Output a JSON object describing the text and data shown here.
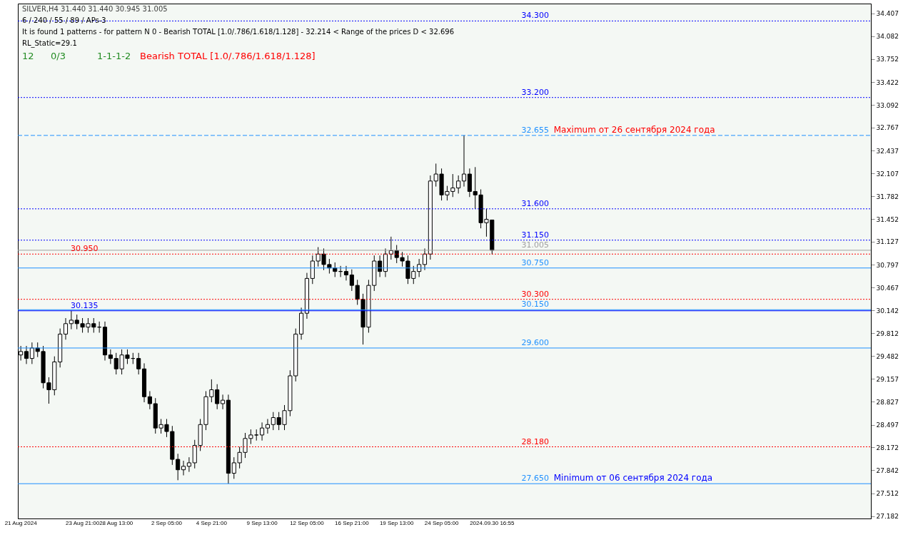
{
  "chart_data": {
    "type": "candlestick",
    "categories": [
      "21 Aug 2024",
      null,
      null,
      null,
      null,
      null,
      null,
      null,
      null,
      null,
      null,
      "23 Aug 21:00",
      null,
      null,
      null,
      null,
      null,
      "28 Aug 13:00",
      null,
      null,
      null,
      null,
      null,
      null,
      null,
      null,
      "2 Sep 05:00",
      null,
      null,
      null,
      null,
      null,
      null,
      null,
      "4 Sep 21:00",
      null,
      null,
      null,
      null,
      null,
      null,
      null,
      null,
      "9 Sep 13:00",
      null,
      null,
      null,
      null,
      null,
      null,
      null,
      "12 Sep 05:00",
      null,
      null,
      null,
      null,
      null,
      null,
      null,
      "16 Sep 21:00",
      null,
      null,
      null,
      null,
      null,
      null,
      null,
      "19 Sep 13:00",
      null,
      null,
      null,
      null,
      null,
      null,
      null,
      "24 Sep 05:00",
      null,
      null,
      null,
      null,
      null,
      null,
      null,
      null,
      "2024.09.30 16:55",
      null,
      null,
      null,
      null,
      null,
      null,
      null,
      null,
      null,
      null,
      null,
      null,
      null,
      null,
      null,
      null,
      null,
      null,
      null,
      null,
      null,
      null,
      null,
      null,
      null,
      null,
      null,
      null,
      null,
      null,
      null,
      null,
      null,
      null,
      null,
      null,
      null,
      null,
      null,
      null,
      null,
      null,
      null,
      null,
      null,
      null,
      null,
      null,
      null,
      null,
      null,
      null,
      null,
      null,
      null,
      null,
      null,
      null,
      null,
      null,
      null,
      null,
      null,
      null,
      null,
      null,
      null
    ],
    "ohlc": [
      [
        29.5,
        29.63,
        29.42,
        29.55
      ],
      [
        29.55,
        29.63,
        29.37,
        29.45
      ],
      [
        29.45,
        29.68,
        29.37,
        29.6
      ],
      [
        29.6,
        29.68,
        29.47,
        29.55
      ],
      [
        29.55,
        29.63,
        29.02,
        29.1
      ],
      [
        29.1,
        29.18,
        28.8,
        29.0
      ],
      [
        29.0,
        29.48,
        28.92,
        29.4
      ],
      [
        29.4,
        29.88,
        29.32,
        29.8
      ],
      [
        29.8,
        30.03,
        29.72,
        29.95
      ],
      [
        29.95,
        30.135,
        29.87,
        30.0
      ],
      [
        30.0,
        30.08,
        29.87,
        29.95
      ],
      [
        29.95,
        30.03,
        29.82,
        29.9
      ],
      [
        29.9,
        30.03,
        29.82,
        29.95
      ],
      [
        29.95,
        30.03,
        29.82,
        29.9
      ],
      [
        29.9,
        29.98,
        29.82,
        29.9
      ],
      [
        29.9,
        29.98,
        29.42,
        29.5
      ],
      [
        29.5,
        29.58,
        29.37,
        29.45
      ],
      [
        29.45,
        29.53,
        29.22,
        29.3
      ],
      [
        29.3,
        29.58,
        29.22,
        29.5
      ],
      [
        29.5,
        29.58,
        29.37,
        29.45
      ],
      [
        29.45,
        29.53,
        29.37,
        29.45
      ],
      [
        29.45,
        29.53,
        29.22,
        29.3
      ],
      [
        29.3,
        29.38,
        28.82,
        28.9
      ],
      [
        28.9,
        28.98,
        28.72,
        28.8
      ],
      [
        28.8,
        28.88,
        28.37,
        28.45
      ],
      [
        28.45,
        28.58,
        28.37,
        28.5
      ],
      [
        28.5,
        28.58,
        28.32,
        28.4
      ],
      [
        28.4,
        28.48,
        27.92,
        28.0
      ],
      [
        28.0,
        28.08,
        27.7,
        27.85
      ],
      [
        27.85,
        27.98,
        27.77,
        27.9
      ],
      [
        27.9,
        28.03,
        27.82,
        27.95
      ],
      [
        27.95,
        28.28,
        27.87,
        28.2
      ],
      [
        28.2,
        28.58,
        28.12,
        28.5
      ],
      [
        28.5,
        28.98,
        28.42,
        28.9
      ],
      [
        28.9,
        29.15,
        28.82,
        29.0
      ],
      [
        29.0,
        29.08,
        28.72,
        28.8
      ],
      [
        28.8,
        28.93,
        28.72,
        28.85
      ],
      [
        28.85,
        28.93,
        27.65,
        27.8
      ],
      [
        27.8,
        28.03,
        27.72,
        27.95
      ],
      [
        27.95,
        28.18,
        27.87,
        28.1
      ],
      [
        28.1,
        28.38,
        28.02,
        28.3
      ],
      [
        28.3,
        28.43,
        28.22,
        28.35
      ],
      [
        28.35,
        28.43,
        28.27,
        28.35
      ],
      [
        28.35,
        28.53,
        28.27,
        28.45
      ],
      [
        28.45,
        28.58,
        28.37,
        28.5
      ],
      [
        28.5,
        28.68,
        28.42,
        28.6
      ],
      [
        28.6,
        28.68,
        28.42,
        28.5
      ],
      [
        28.5,
        28.78,
        28.42,
        28.7
      ],
      [
        28.7,
        29.28,
        28.62,
        29.2
      ],
      [
        29.2,
        29.88,
        29.12,
        29.8
      ],
      [
        29.8,
        30.18,
        29.72,
        30.1
      ],
      [
        30.1,
        30.68,
        30.02,
        30.6
      ],
      [
        30.6,
        30.93,
        30.52,
        30.85
      ],
      [
        30.85,
        31.05,
        30.77,
        30.95
      ],
      [
        30.95,
        31.03,
        30.72,
        30.8
      ],
      [
        30.8,
        30.88,
        30.67,
        30.75
      ],
      [
        30.75,
        30.83,
        30.62,
        30.7
      ],
      [
        30.7,
        30.78,
        30.62,
        30.7
      ],
      [
        30.7,
        30.78,
        30.57,
        30.65
      ],
      [
        30.65,
        30.73,
        30.42,
        30.5
      ],
      [
        30.5,
        30.58,
        30.22,
        30.3
      ],
      [
        30.3,
        30.38,
        29.65,
        29.9
      ],
      [
        29.9,
        30.58,
        29.82,
        30.5
      ],
      [
        30.5,
        30.93,
        30.42,
        30.85
      ],
      [
        30.85,
        30.93,
        30.62,
        30.7
      ],
      [
        30.7,
        31.03,
        30.62,
        30.95
      ],
      [
        30.95,
        31.2,
        30.87,
        31.0
      ],
      [
        31.0,
        31.08,
        30.82,
        30.9
      ],
      [
        30.9,
        30.98,
        30.77,
        30.85
      ],
      [
        30.85,
        30.93,
        30.52,
        30.6
      ],
      [
        30.6,
        30.78,
        30.52,
        30.7
      ],
      [
        30.7,
        30.88,
        30.62,
        30.8
      ],
      [
        30.8,
        31.03,
        30.72,
        30.95
      ],
      [
        30.95,
        32.08,
        30.87,
        32.0
      ],
      [
        32.0,
        32.25,
        31.92,
        32.1
      ],
      [
        32.1,
        32.18,
        31.72,
        31.8
      ],
      [
        31.8,
        31.93,
        31.72,
        31.85
      ],
      [
        31.85,
        32.1,
        31.77,
        31.9
      ],
      [
        31.9,
        32.08,
        31.82,
        32.0
      ],
      [
        32.0,
        32.655,
        31.92,
        32.1
      ],
      [
        32.1,
        32.18,
        31.77,
        31.85
      ],
      [
        31.85,
        32.2,
        31.6,
        31.8
      ],
      [
        31.8,
        31.88,
        31.32,
        31.4
      ],
      [
        31.4,
        31.6,
        31.2,
        31.45
      ],
      [
        31.44,
        31.44,
        30.945,
        31.005
      ],
      null,
      null,
      null,
      null,
      null,
      null,
      null,
      null,
      null,
      null,
      null,
      null,
      null,
      null,
      null,
      null,
      null,
      null,
      null,
      null,
      null,
      null,
      null,
      null,
      null,
      null,
      null,
      null,
      null,
      null,
      null,
      null,
      null,
      null,
      null,
      null,
      null,
      null,
      null,
      null,
      null,
      null,
      null,
      null,
      null,
      null,
      null,
      null,
      null,
      null,
      null,
      null,
      null,
      null,
      null,
      null,
      null,
      null,
      null,
      null,
      null,
      null,
      null,
      null,
      null,
      null,
      null
    ],
    "ylim": [
      27.15,
      34.55
    ],
    "yticks": [
      27.182,
      27.512,
      27.842,
      28.172,
      28.497,
      28.827,
      29.157,
      29.482,
      29.812,
      30.142,
      30.467,
      30.797,
      31.127,
      31.452,
      31.782,
      32.107,
      32.437,
      32.767,
      33.092,
      33.422,
      33.752,
      34.082,
      34.407
    ],
    "grid": false,
    "ref_lines": [
      {
        "axis": "y",
        "value": 34.3,
        "label": "34.300",
        "color": "#0000ff",
        "line_style": "dotted"
      },
      {
        "axis": "y",
        "value": 33.2,
        "label": "33.200",
        "color": "#0000ff",
        "line_style": "dotted"
      },
      {
        "axis": "y",
        "value": 32.655,
        "label": "32.655",
        "color": "#1e90ff",
        "line_style": "dashed"
      },
      {
        "axis": "y",
        "value": 31.6,
        "label": "31.600",
        "color": "#0000ff",
        "line_style": "dotted"
      },
      {
        "axis": "y",
        "value": 31.15,
        "label": "31.150",
        "color": "#0000ff",
        "line_style": "dotted"
      },
      {
        "axis": "y",
        "value": 31.005,
        "label": "31.005",
        "color": "#a0a0a0",
        "line_style": "solid"
      },
      {
        "axis": "y",
        "value": 30.95,
        "label": "30.950",
        "color": "#ff0000",
        "line_style": "dotted"
      },
      {
        "axis": "y",
        "value": 30.75,
        "label": "30.750",
        "color": "#1e90ff",
        "line_style": "solid"
      },
      {
        "axis": "y",
        "value": 30.3,
        "label": "30.300",
        "color": "#ff0000",
        "line_style": "dotted"
      },
      {
        "axis": "y",
        "value": 30.15,
        "label": "30.150",
        "color": "#1e90ff",
        "line_style": "solid"
      },
      {
        "axis": "y",
        "value": 30.135,
        "label": "30.135",
        "color": "#0000ff",
        "line_style": "solid"
      },
      {
        "axis": "y",
        "value": 29.6,
        "label": "29.600",
        "color": "#1e90ff",
        "line_style": "solid"
      },
      {
        "axis": "y",
        "value": 28.18,
        "label": "28.180",
        "color": "#ff0000",
        "line_style": "dotted"
      },
      {
        "axis": "y",
        "value": 27.65,
        "label": "27.650",
        "color": "#1e90ff",
        "line_style": "solid"
      }
    ],
    "annotations": [
      "SILVER,H4  31.440 31.440 30.945 31.005",
      "6 / 240 / 55 / 89 / APs-3",
      "It is found 1 patterns  -  for pattern N 0 - Bearish TOTAL [1.0/.786/1.618/1.128] - 32.214 < Range of the prices D < 32.696",
      "RL_Static=29.1",
      "12",
      "0/3",
      "1-1-1-2",
      "Bearish TOTAL [1.0/.786/1.618/1.128]",
      {
        "text": "Maximum от 26 сентября 2024 года",
        "y": 32.655
      },
      {
        "text": "Minimum от 06 сентября 2024 года",
        "y": 27.65
      }
    ]
  }
}
